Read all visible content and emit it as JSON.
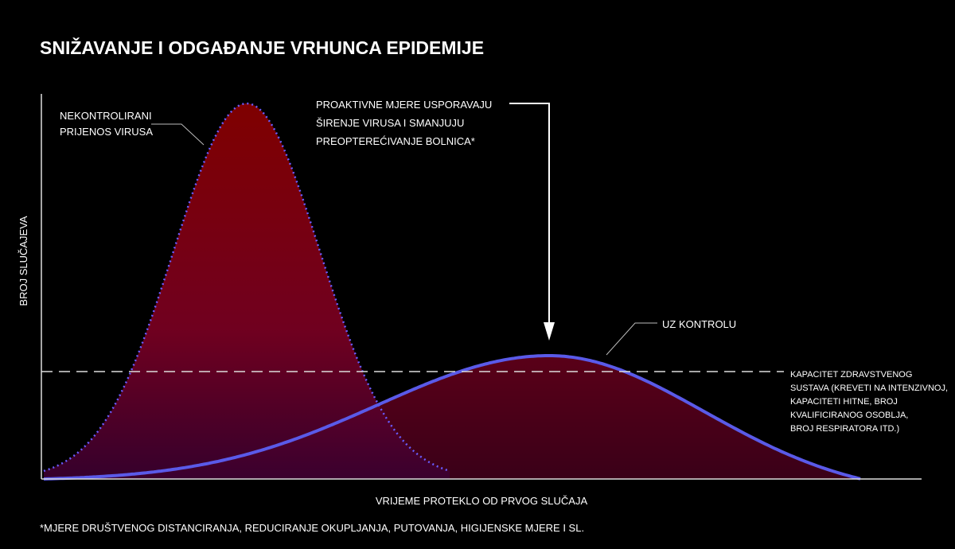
{
  "header": {
    "title": "SNIŽAVANJE I ODGAĐANJE VRHUNCA EPIDEMIJE"
  },
  "axes": {
    "y_label": "BROJ SLUČAJEVA",
    "x_label": "VRIJEME PROTEKLO OD PRVOG SLUČAJA"
  },
  "annotations": {
    "uncontrolled": [
      "NEKONTROLIRANI",
      "PRIJENOS VIRUSA"
    ],
    "proactive": [
      "PROAKTIVNE MJERE USPORAVAJU",
      "ŠIRENJE VIRUSA I SMANJUJU",
      "PREOPTEREĆIVANJE BOLNICA*"
    ],
    "controlled": "UZ KONTROLU",
    "capacity": [
      "KAPACITET ZDRAVSTVENOG",
      "SUSTAVA (KREVETI NA INTENZIVNOJ,",
      "KAPACITETI HITNE, BROJ",
      "KVALIFICIRANOG OSOBLJA,",
      "BROJ RESPIRATORA ITD.)"
    ]
  },
  "footnote": "*MJERE DRUŠTVENOG DISTANCIRANJA, REDUCIRANJE OKUPLJANJA, PUTOVANJA, HIGIJENSKE MJERE I SL."
}
